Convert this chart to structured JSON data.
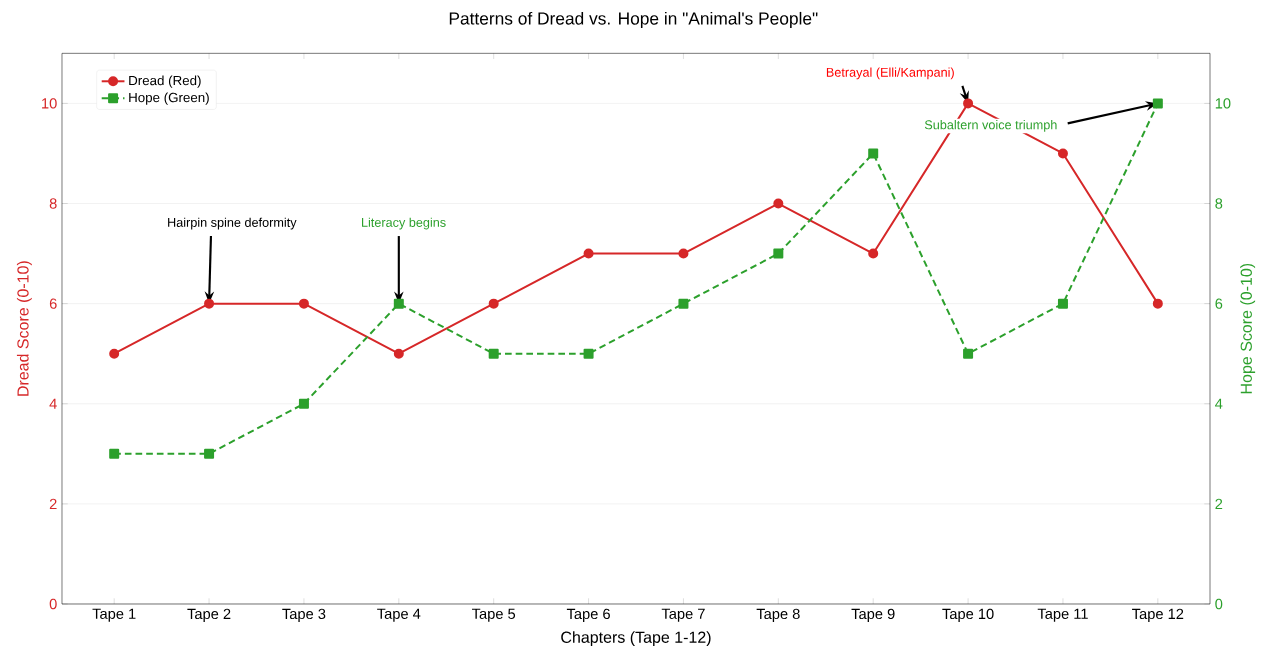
{
  "chart_data": {
    "type": "line",
    "title": "Patterns of Dread vs. Hope in \"Animal's People\"",
    "xlabel": "Chapters (Tape 1-12)",
    "ylabel": "Dread Score (0-10)",
    "y2label": "Hope Score (0-10)",
    "categories": [
      "Tape 1",
      "Tape 2",
      "Tape 3",
      "Tape 4",
      "Tape 5",
      "Tape 6",
      "Tape 7",
      "Tape 8",
      "Tape 9",
      "Tape 10",
      "Tape 11",
      "Tape 12"
    ],
    "series": [
      {
        "name": "Dread (Red)",
        "color": "#d62728",
        "marker": "circle",
        "line_style": "solid",
        "values": [
          5,
          6,
          6,
          5,
          6,
          7,
          7,
          8,
          7,
          10,
          9,
          6
        ]
      },
      {
        "name": "Hope (Green)",
        "color": "#2ca02c",
        "marker": "square",
        "line_style": "dashed",
        "axis": "y2",
        "values": [
          3,
          3,
          4,
          6,
          5,
          5,
          6,
          7,
          9,
          5,
          6,
          10
        ]
      }
    ],
    "ylim": [
      0,
      11
    ],
    "yticks": [
      0,
      2,
      4,
      6,
      8,
      10
    ],
    "y2lim": [
      0,
      11
    ],
    "y2ticks": [
      0,
      2,
      4,
      6,
      8,
      10
    ],
    "grid": "y",
    "legend": "top left",
    "annotations": [
      {
        "text": "Hairpin spine deformity",
        "x": "Tape 2",
        "y": 6
      },
      {
        "text": "Literacy begins",
        "x": "Tape 4",
        "y": 6
      },
      {
        "text": "Betrayal (Elli/Kampani)",
        "x": "Tape 10",
        "y": 10
      },
      {
        "text": "Subaltern voice triumph",
        "x": "Tape 12",
        "y": 10
      }
    ]
  }
}
